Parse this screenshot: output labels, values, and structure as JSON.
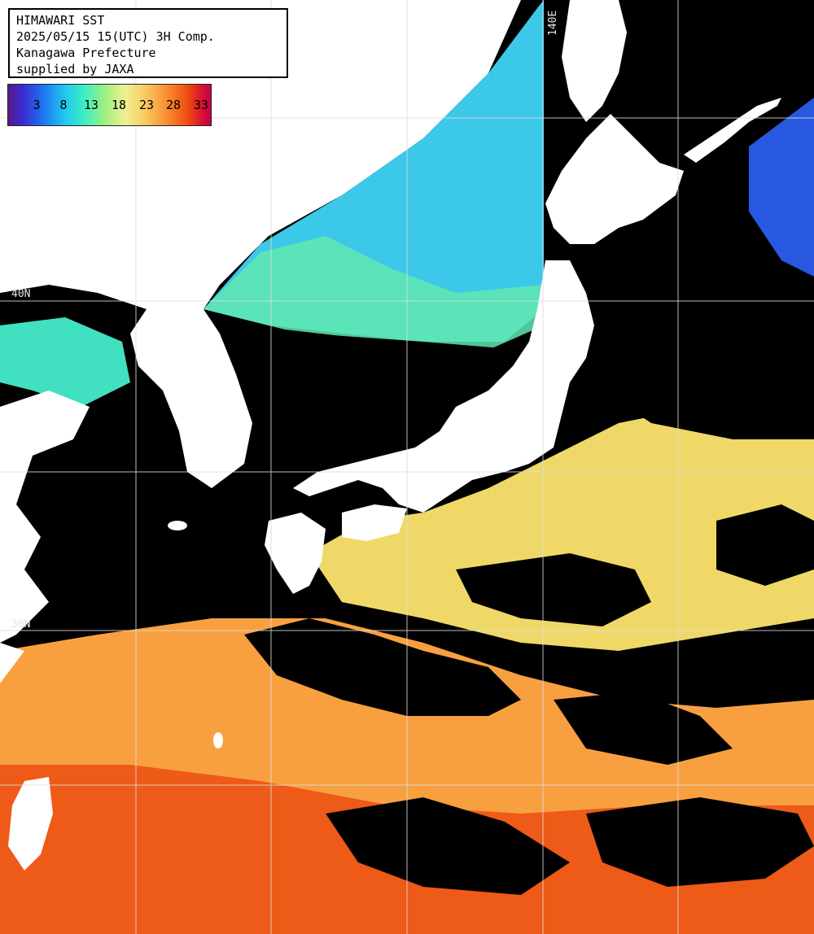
{
  "header": {
    "line1": "HIMAWARI SST",
    "line2": "2025/05/15 15(UTC) 3H Comp.",
    "line3": "Kanagawa Prefecture",
    "line4": "supplied by JAXA"
  },
  "legend": {
    "ticks": [
      "3",
      "8",
      "13",
      "18",
      "23",
      "28",
      "33"
    ],
    "colors": [
      "#5a1a8a",
      "#3a2ad0",
      "#20c8f0",
      "#a0f080",
      "#f0f090",
      "#f89030",
      "#d81030"
    ]
  },
  "grid_labels": {
    "lon_140": "140E",
    "lat_40": "40N",
    "lat_30": "30N"
  },
  "colors": {
    "land": "#ffffff",
    "cloud_mask": "#000000",
    "grid": "#dddddd"
  }
}
